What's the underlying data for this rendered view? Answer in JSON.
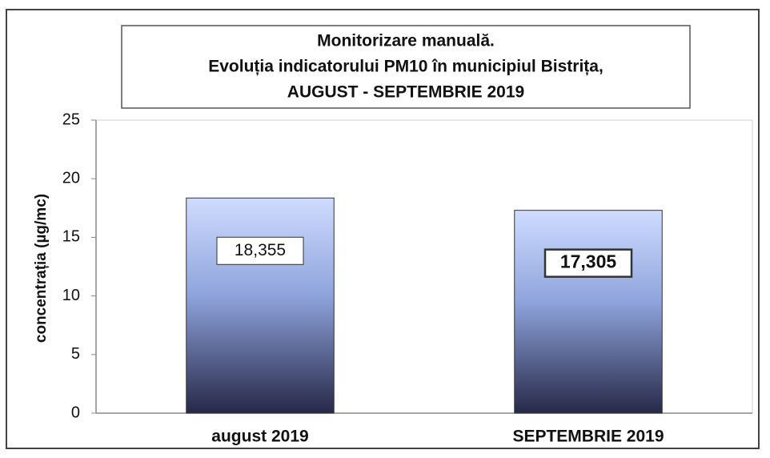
{
  "chart_data": {
    "type": "bar",
    "title": [
      "Monitorizare manuală.",
      "Evoluția indicatorului PM10 în municipiul Bistrița,",
      "AUGUST - SEPTEMBRIE 2019"
    ],
    "ylabel": "concentrația (µg/mc)",
    "categories": [
      "august 2019",
      "SEPTEMBRIE 2019"
    ],
    "values": [
      18.355,
      17.305
    ],
    "value_labels": [
      "18,355",
      "17,305"
    ],
    "ylim": [
      0,
      25
    ],
    "yticks": [
      0,
      5,
      10,
      15,
      20,
      25
    ],
    "grid": false
  }
}
